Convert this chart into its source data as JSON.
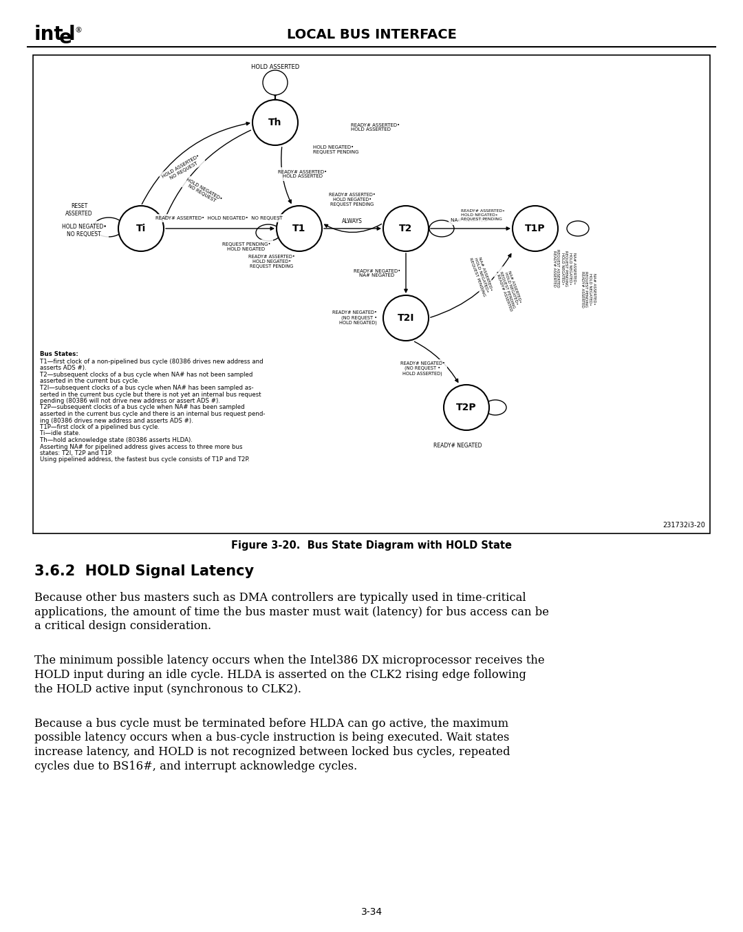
{
  "header_title": "LOCAL BUS INTERFACE",
  "figure_number": "Figure 3-20.",
  "figure_caption": "Bus State Diagram with HOLD State",
  "section_heading": "3.6.2  HOLD Signal Latency",
  "para1_lines": [
    "Because other bus masters such as DMA controllers are typically used in time-critical",
    "applications, the amount of time the bus master must wait (latency) for bus access can be",
    "a critical design consideration."
  ],
  "para2_lines": [
    "The minimum possible latency occurs when the Intel386 DX microprocessor receives the",
    "HOLD input during an idle cycle. HLDA is asserted on the CLK2 rising edge following",
    "the HOLD active input (synchronous to CLK2)."
  ],
  "para3_lines": [
    "Because a bus cycle must be terminated before HLDA can go active, the maximum",
    "possible latency occurs when a bus-cycle instruction is being executed. Wait states",
    "increase latency, and HOLD is not recognized between locked bus cycles, repeated",
    "cycles due to BS16#, and interrupt acknowledge cycles."
  ],
  "page_number": "3-34",
  "figure_id": "231732i3-20",
  "bus_states_bold": "Bus States:",
  "bus_states_lines": [
    "T1—first clock of a non-pipelined bus cycle (80386 drives new address and",
    "asserts ADS #).",
    "T2—subsequent clocks of a bus cycle when NA# has not been sampled",
    "asserted in the current bus cycle.",
    "T2I—subsequent clocks of a bus cycle when NA# has been sampled as-",
    "serted in the current bus cycle but there is not yet an internal bus request",
    "pending (80386 will not drive new address or assert ADS #).",
    "T2P—subsequent clocks of a bus cycle when NA# has been sampled",
    "asserted in the current bus cycle and there is an internal bus request pend-",
    "ing (80386 drives new address and asserts ADS #).",
    "T1P—first clock of a pipelined bus cycle.",
    "Ti—idle state.",
    "Th—hold acknowledge state (80386 asserts HLDA).",
    "Asserting NA# for pipelined address gives access to three more bus",
    "states: T2I, T2P and T1P.",
    "Using pipelined address, the fastest bus cycle consists of T1P and T2P."
  ],
  "bg_color": "#ffffff"
}
